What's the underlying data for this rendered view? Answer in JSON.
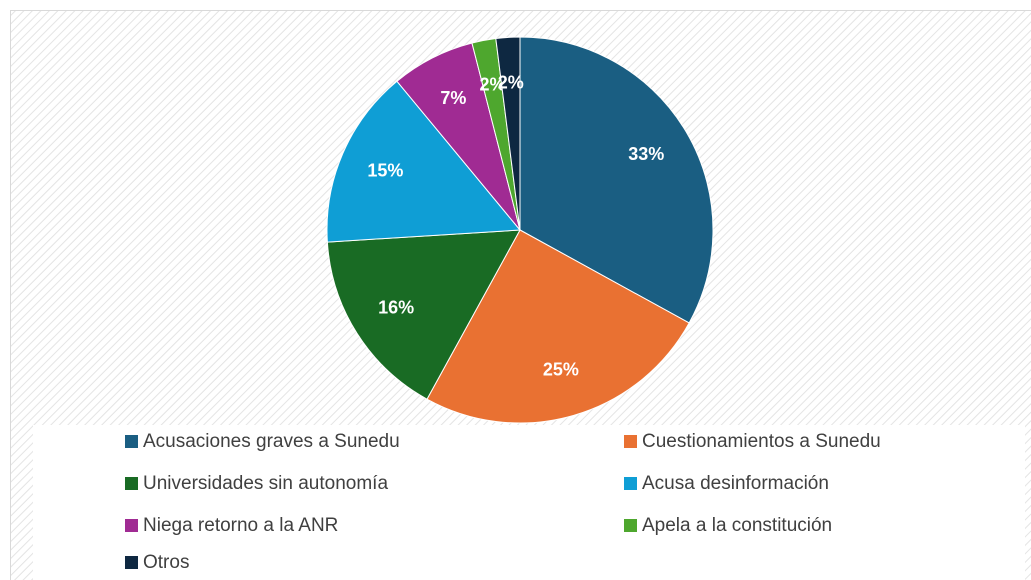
{
  "chart_data": {
    "type": "pie",
    "categories": [
      "Acusaciones graves a Sunedu",
      "Cuestionamientos a Sunedu",
      "Universidades sin autonomía",
      "Acusa desinformación",
      "Niega retorno a la ANR",
      "Apela a la constitución",
      "Otros"
    ],
    "values": [
      33,
      25,
      16,
      15,
      7,
      2,
      2
    ],
    "value_labels": [
      "33%",
      "25%",
      "16%",
      "15%",
      "7%",
      "2%",
      "2%"
    ],
    "colors": [
      "#1a5e82",
      "#e97132",
      "#196b24",
      "#0f9ed5",
      "#a02b93",
      "#4ea72e",
      "#0e2841"
    ],
    "legend": "bottom"
  }
}
